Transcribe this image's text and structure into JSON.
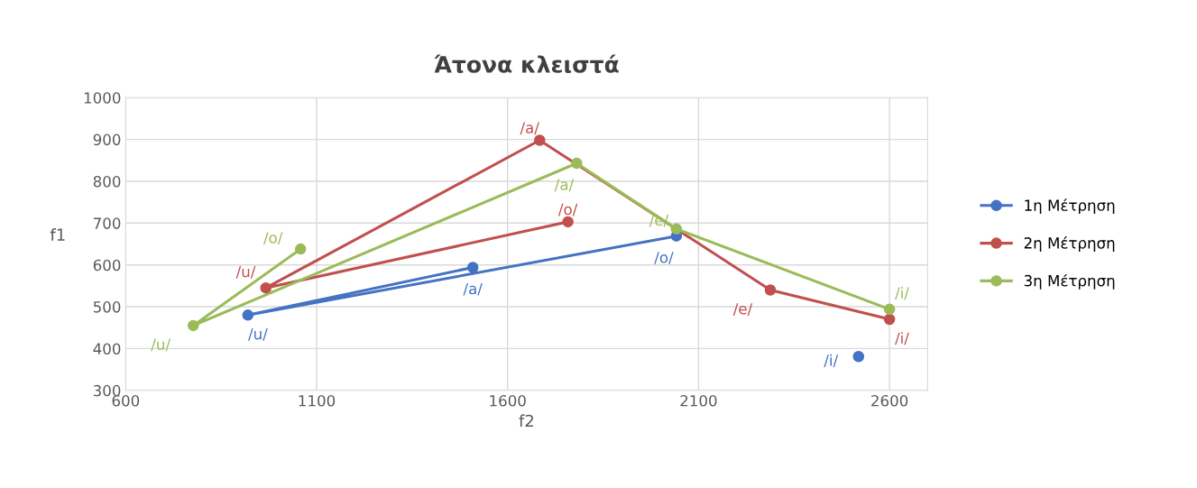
{
  "chart_data": {
    "type": "line",
    "title": "Άτονα κλειστά",
    "xlabel": "f2",
    "ylabel": "f1",
    "xlim": [
      600,
      2700
    ],
    "ylim": [
      300,
      1000
    ],
    "xticks": [
      600,
      1100,
      1600,
      2100,
      2600
    ],
    "yticks": [
      300,
      400,
      500,
      600,
      700,
      800,
      900,
      1000
    ],
    "grid": true,
    "legend": "right",
    "marker": "circle",
    "line_style": "solid",
    "series": [
      {
        "name": "1η Μέτρηση",
        "color": "#4472c4",
        "x": [
          2042,
          920,
          1509,
          null,
          2519
        ],
        "values": [
          669,
          480,
          594,
          null,
          381
        ],
        "value_labels": [
          "/o/",
          "/u/",
          "/a/",
          null,
          "/i/"
        ]
      },
      {
        "name": "2η Μέτρηση",
        "color": "#c0504d",
        "x": [
          1758,
          967,
          1684,
          2288,
          2600
        ],
        "values": [
          703,
          545,
          898,
          540,
          470
        ],
        "value_labels": [
          "/o/",
          "/u/",
          "/a/",
          "/e/",
          "/i/"
        ]
      },
      {
        "name": "3η Μέτρηση",
        "color": "#9bbb59",
        "x": [
          1058,
          777,
          1781,
          2042,
          2600
        ],
        "values": [
          638,
          455,
          843,
          686,
          494
        ],
        "value_labels": [
          "/o/",
          "/u/",
          "/a/",
          "/e/",
          "/i/"
        ]
      }
    ]
  }
}
